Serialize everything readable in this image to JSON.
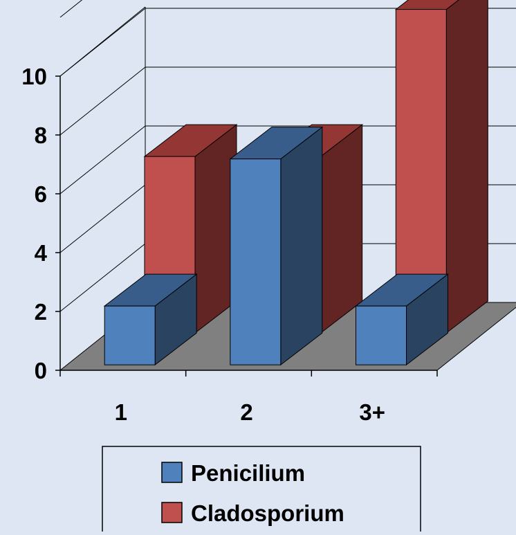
{
  "chart_data": {
    "type": "bar",
    "style": "3d-clustered",
    "categories": [
      "1",
      "2",
      "3+"
    ],
    "series": [
      {
        "name": "Penicilium",
        "values": [
          2,
          7,
          2
        ]
      },
      {
        "name": "Cladosporium",
        "values": [
          6,
          6,
          11
        ]
      }
    ],
    "ylim": [
      0,
      10
    ],
    "yticks": [
      "0",
      "2",
      "4",
      "6",
      "8",
      "10"
    ],
    "grid": true,
    "legend_position": "bottom",
    "colors": {
      "background": "#dde6f2",
      "penicilium_front": "#4f81bd",
      "penicilium_top": "#385d8a",
      "penicilium_side": "#2a4360",
      "cladosporium_front": "#c0504d",
      "cladosporium_top": "#943634",
      "cladosporium_side": "#632523",
      "floor": "#808080",
      "wall": "#dde6f2"
    }
  }
}
